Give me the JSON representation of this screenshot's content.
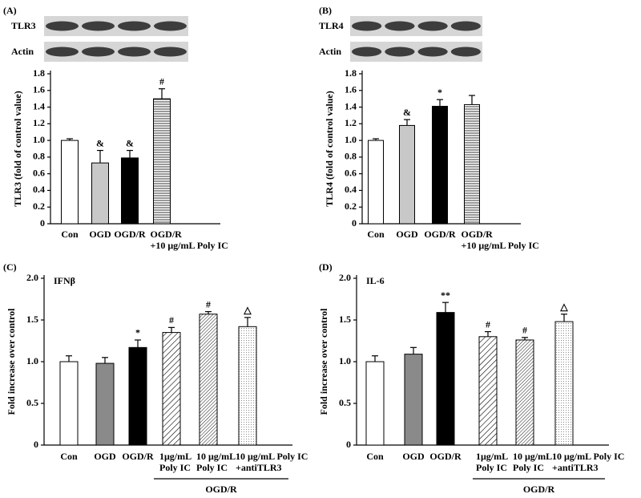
{
  "chart_data": [
    {
      "type": "bar",
      "panel": "(A)",
      "ylabel": "TLR3 (fold of control value)",
      "blot_labels": [
        "TLR3",
        "Actin"
      ],
      "categories": [
        "Con",
        "OGD",
        "OGD/R",
        [
          "OGD/R",
          "+10 μg/mL Poly IC"
        ]
      ],
      "values": [
        1.0,
        0.73,
        0.79,
        1.5
      ],
      "errors": [
        0.02,
        0.15,
        0.09,
        0.12
      ],
      "annotations": [
        null,
        "&",
        "&",
        "#"
      ],
      "fills": [
        "white",
        "lightgray",
        "black",
        "hatch-horizontal"
      ],
      "ylim": [
        0,
        1.8
      ],
      "yticks": [
        0,
        0.2,
        0.4,
        0.6,
        0.8,
        {
          "value": 1.0,
          "label": "1.0"
        },
        1.2,
        1.4,
        1.6,
        1.8
      ]
    },
    {
      "type": "bar",
      "panel": "(B)",
      "ylabel": "TLR4 (fold of control value)",
      "blot_labels": [
        "TLR4",
        "Actin"
      ],
      "categories": [
        "Con",
        "OGD",
        "OGD/R",
        [
          "OGD/R",
          "+10 μg/mL Poly IC"
        ]
      ],
      "values": [
        1.0,
        1.18,
        1.41,
        1.43
      ],
      "errors": [
        0.02,
        0.07,
        0.08,
        0.11
      ],
      "annotations": [
        null,
        "&",
        "*",
        null
      ],
      "fills": [
        "white",
        "lightgray",
        "black",
        "hatch-horizontal"
      ],
      "ylim": [
        0,
        1.8
      ],
      "yticks": [
        0,
        0.2,
        0.4,
        0.6,
        0.8,
        {
          "value": 1.0,
          "label": "1.0"
        },
        1.2,
        1.4,
        1.6,
        1.8
      ]
    },
    {
      "type": "bar",
      "panel": "(C)",
      "ylabel": "Fold increase over control",
      "inner_label": "IFNβ",
      "group_label": "OGD/R",
      "categories": [
        "Con",
        "OGD",
        "OGD/R",
        [
          "1μg/mL",
          "Poly IC"
        ],
        [
          "10 μg/mL",
          "Poly IC"
        ],
        [
          "10 μg/mL Poly IC",
          "+antiTLR3"
        ]
      ],
      "values": [
        1.0,
        0.98,
        1.17,
        1.35,
        1.57,
        1.42
      ],
      "errors": [
        0.07,
        0.07,
        0.09,
        0.06,
        0.03,
        0.11
      ],
      "annotations": [
        null,
        null,
        "*",
        "#",
        "#",
        "△"
      ],
      "fills": [
        "white",
        "gray",
        "black",
        "hatch-diagonal",
        "hatch-dense",
        "dots"
      ],
      "ylim": [
        0,
        2.0
      ],
      "yticks": [
        0,
        0.5,
        {
          "value": 1.0,
          "label": "1.0"
        },
        1.5,
        {
          "value": 2.0,
          "label": "2.0"
        }
      ]
    },
    {
      "type": "bar",
      "panel": "(D)",
      "ylabel": "Fold increase over control",
      "inner_label": "IL-6",
      "group_label": "OGD/R",
      "categories": [
        "Con",
        "OGD",
        "OGD/R",
        [
          "1μg/mL",
          "Poly IC"
        ],
        [
          "10 μg/mL",
          "Poly IC"
        ],
        [
          "10 μg/mL Poly IC",
          "+antiTLR3"
        ]
      ],
      "values": [
        1.0,
        1.09,
        1.59,
        1.3,
        1.26,
        1.48
      ],
      "errors": [
        0.07,
        0.08,
        0.12,
        0.06,
        0.03,
        0.09
      ],
      "annotations": [
        null,
        null,
        "**",
        "#",
        "#",
        "△"
      ],
      "fills": [
        "white",
        "gray",
        "black",
        "hatch-diagonal",
        "hatch-dense",
        "dots"
      ],
      "ylim": [
        0,
        2.0
      ],
      "yticks": [
        0,
        0.5,
        {
          "value": 1.0,
          "label": "1.0"
        },
        1.5,
        {
          "value": 2.0,
          "label": "2.0"
        }
      ]
    }
  ]
}
